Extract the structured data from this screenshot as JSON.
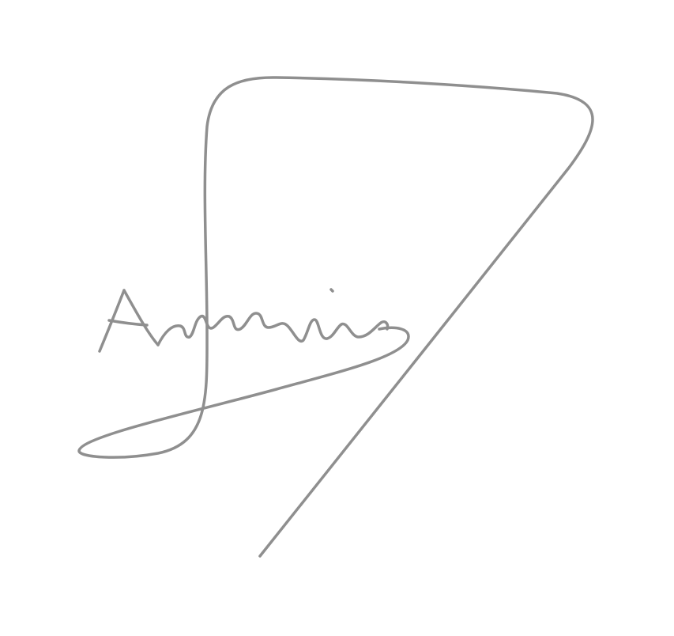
{
  "signature": {
    "text": "Adamis",
    "stroke_color": "#8f8f8f",
    "background_color": "#ffffff"
  }
}
